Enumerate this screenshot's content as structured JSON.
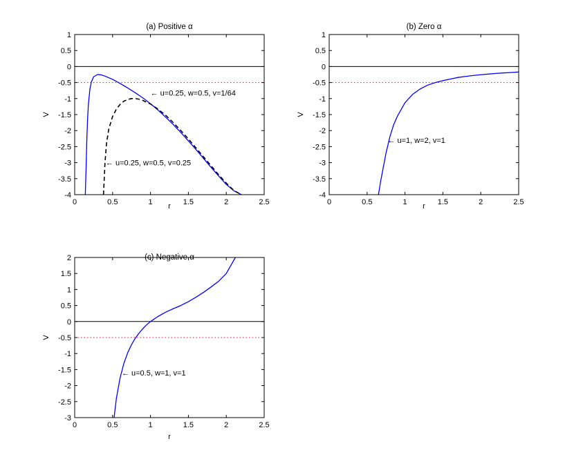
{
  "chart_data": [
    {
      "type": "line",
      "title": "(a) Positive α",
      "xlabel": "r",
      "ylabel": "V",
      "xlim": [
        0,
        2.5
      ],
      "ylim": [
        -4,
        1
      ],
      "xticks": [
        0,
        0.5,
        1,
        1.5,
        2,
        2.5
      ],
      "xtick_labels": [
        "0",
        "0.5",
        "1",
        "1.5",
        "2",
        "2.5"
      ],
      "yticks": [
        1,
        0.5,
        0,
        -0.5,
        -1,
        -1.5,
        -2,
        -2.5,
        -3,
        -3.5,
        -4
      ],
      "ytick_labels": [
        "1",
        "0.5",
        "0",
        "-0.5",
        "-1",
        "-1.5",
        "-2",
        "-2.5",
        "-3",
        "-3.5",
        "-4"
      ],
      "grid": false,
      "reference_lines": [
        {
          "y": 0,
          "color": "#000000",
          "style": "solid"
        },
        {
          "y": -0.5,
          "color": "#ff0000",
          "style": "dotted"
        }
      ],
      "series": [
        {
          "color": "#0000ff",
          "style": "solid",
          "x": [
            0.14,
            0.15,
            0.16,
            0.17,
            0.18,
            0.2,
            0.22,
            0.25,
            0.3,
            0.35,
            0.4,
            0.5,
            0.6,
            0.7,
            0.8,
            0.9,
            1.0,
            1.1,
            1.2,
            1.3,
            1.4,
            1.5,
            1.6,
            1.7,
            1.8,
            1.9,
            2.0,
            2.1,
            2.2
          ],
          "y": [
            -4.0,
            -3.2,
            -2.3,
            -1.65,
            -1.2,
            -0.72,
            -0.48,
            -0.32,
            -0.25,
            -0.26,
            -0.3,
            -0.4,
            -0.53,
            -0.67,
            -0.82,
            -0.98,
            -1.16,
            -1.36,
            -1.58,
            -1.81,
            -2.06,
            -2.32,
            -2.59,
            -2.87,
            -3.15,
            -3.42,
            -3.68,
            -3.88,
            -4.0
          ]
        },
        {
          "color": "#000000",
          "style": "dashed",
          "x": [
            0.38,
            0.39,
            0.4,
            0.42,
            0.45,
            0.5,
            0.55,
            0.6,
            0.65,
            0.7,
            0.75,
            0.8,
            0.85,
            0.9,
            1.0,
            1.1,
            1.2,
            1.3,
            1.4,
            1.5,
            1.6,
            1.7,
            1.8,
            1.9,
            2.0,
            2.1,
            2.2
          ],
          "y": [
            -4.0,
            -3.5,
            -3.0,
            -2.4,
            -1.95,
            -1.56,
            -1.33,
            -1.18,
            -1.08,
            -1.03,
            -1.0,
            -1.0,
            -1.02,
            -1.06,
            -1.17,
            -1.33,
            -1.52,
            -1.75,
            -2.0,
            -2.26,
            -2.54,
            -2.82,
            -3.1,
            -3.38,
            -3.64,
            -3.87,
            -4.0
          ]
        }
      ],
      "annotations": [
        {
          "text": "← u=0.25, w=0.5, v=1/64",
          "x": 1.0,
          "y": -0.82
        },
        {
          "text": "← u=0.25, w=0.5, v=0.25",
          "x": 0.41,
          "y": -3.0
        }
      ]
    },
    {
      "type": "line",
      "title": "(b) Zero α",
      "xlabel": "r",
      "ylabel": "V",
      "xlim": [
        0,
        2.5
      ],
      "ylim": [
        -4,
        1
      ],
      "xticks": [
        0,
        0.5,
        1,
        1.5,
        2,
        2.5
      ],
      "xtick_labels": [
        "0",
        "0.5",
        "1",
        "1.5",
        "2",
        "2.5"
      ],
      "yticks": [
        1,
        0.5,
        0,
        -0.5,
        -1,
        -1.5,
        -2,
        -2.5,
        -3,
        -3.5,
        -4
      ],
      "ytick_labels": [
        "1",
        "0.5",
        "0",
        "-0.5",
        "-1",
        "-1.5",
        "-2",
        "-2.5",
        "-3",
        "-3.5",
        "-4"
      ],
      "grid": false,
      "reference_lines": [
        {
          "y": 0,
          "color": "#000000",
          "style": "solid"
        },
        {
          "y": -0.5,
          "color": "#ff0000",
          "style": "dotted"
        }
      ],
      "series": [
        {
          "color": "#0000ff",
          "style": "solid",
          "x": [
            0.65,
            0.68,
            0.7,
            0.75,
            0.8,
            0.85,
            0.9,
            1.0,
            1.1,
            1.2,
            1.3,
            1.4,
            1.5,
            1.6,
            1.7,
            1.8,
            1.9,
            2.0,
            2.1,
            2.2,
            2.3,
            2.4,
            2.5
          ],
          "y": [
            -4.0,
            -3.57,
            -3.32,
            -2.7,
            -2.2,
            -1.82,
            -1.55,
            -1.13,
            -0.87,
            -0.7,
            -0.58,
            -0.5,
            -0.44,
            -0.39,
            -0.34,
            -0.31,
            -0.28,
            -0.255,
            -0.235,
            -0.215,
            -0.2,
            -0.185,
            -0.17
          ]
        }
      ],
      "annotations": [
        {
          "text": "← u=1, w=2, v=1",
          "x": 0.77,
          "y": -2.3
        }
      ]
    },
    {
      "type": "line",
      "title": "(c) Negative α",
      "xlabel": "r",
      "ylabel": "V",
      "xlim": [
        0,
        2.5
      ],
      "ylim": [
        -3,
        2
      ],
      "xticks": [
        0,
        0.5,
        1,
        1.5,
        2,
        2.5
      ],
      "xtick_labels": [
        "0",
        "0.5",
        "1",
        "1.5",
        "2",
        "2.5"
      ],
      "yticks": [
        2,
        1.5,
        1,
        0.5,
        0,
        -0.5,
        -1,
        -1.5,
        -2,
        -2.5,
        -3
      ],
      "ytick_labels": [
        "2",
        "1.5",
        "1",
        "0.5",
        "0",
        "-0.5",
        "-1",
        "-1.5",
        "-2",
        "-2.5",
        "-3"
      ],
      "grid": false,
      "reference_lines": [
        {
          "y": 0,
          "color": "#000000",
          "style": "solid"
        },
        {
          "y": -0.5,
          "color": "#ff0000",
          "style": "dotted"
        }
      ],
      "series": [
        {
          "color": "#0000ff",
          "style": "solid",
          "x": [
            0.52,
            0.55,
            0.6,
            0.65,
            0.7,
            0.75,
            0.8,
            0.85,
            0.9,
            0.95,
            1.0,
            1.1,
            1.2,
            1.3,
            1.4,
            1.5,
            1.6,
            1.7,
            1.8,
            1.9,
            2.0,
            2.12
          ],
          "y": [
            -3.0,
            -2.4,
            -1.75,
            -1.3,
            -0.97,
            -0.72,
            -0.52,
            -0.36,
            -0.22,
            -0.1,
            0.0,
            0.16,
            0.29,
            0.4,
            0.5,
            0.62,
            0.76,
            0.91,
            1.08,
            1.26,
            1.5,
            2.0
          ]
        }
      ],
      "annotations": [
        {
          "text": "← u=0.5, w=1, v=1",
          "x": 0.62,
          "y": -1.6
        }
      ]
    }
  ]
}
